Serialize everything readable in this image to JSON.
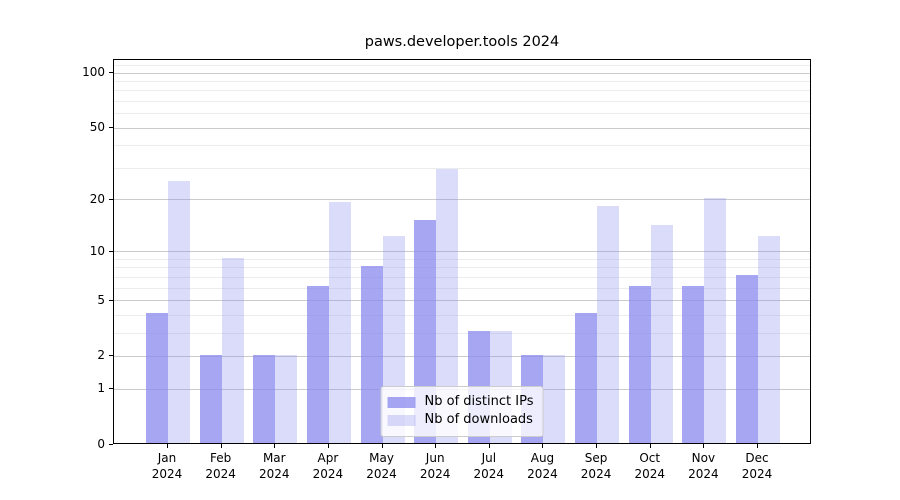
{
  "title": "paws.developer.tools 2024",
  "legend": {
    "position": "lower center",
    "items": [
      {
        "label": "Nb of distinct IPs",
        "color": "rgba(136,136,238,0.75)"
      },
      {
        "label": "Nb of downloads",
        "color": "rgba(136,136,238,0.30)"
      }
    ]
  },
  "axes": {
    "y_tick_labels": [
      "0",
      "1",
      "2",
      "5",
      "10",
      "20",
      "50",
      "100"
    ],
    "x_tick_labels": [
      "Jan 2024",
      "Feb 2024",
      "Mar 2024",
      "Apr 2024",
      "May 2024",
      "Jun 2024",
      "Jul 2024",
      "Aug 2024",
      "Sep 2024",
      "Oct 2024",
      "Nov 2024",
      "Dec 2024"
    ]
  },
  "chart_data": {
    "type": "bar",
    "title": "paws.developer.tools 2024",
    "categories": [
      "Jan 2024",
      "Feb 2024",
      "Mar 2024",
      "Apr 2024",
      "May 2024",
      "Jun 2024",
      "Jul 2024",
      "Aug 2024",
      "Sep 2024",
      "Oct 2024",
      "Nov 2024",
      "Dec 2024"
    ],
    "series": [
      {
        "name": "Nb of distinct IPs",
        "color": "rgba(136,136,238,0.75)",
        "values": [
          4,
          2,
          2,
          6,
          8,
          15,
          3,
          2,
          4,
          6,
          6,
          7
        ]
      },
      {
        "name": "Nb of downloads",
        "color": "rgba(136,136,238,0.30)",
        "values": [
          25,
          9,
          2,
          19,
          12,
          29,
          3,
          2,
          18,
          14,
          20,
          12
        ]
      }
    ],
    "xlabel": "",
    "ylabel": "",
    "yscale": "log10(value+1)",
    "ylim": [
      0,
      118
    ],
    "y_major_ticks": [
      0,
      1,
      2,
      5,
      10,
      20,
      50,
      100
    ],
    "y_minor_gridlines": [
      3,
      4,
      6,
      7,
      8,
      9,
      30,
      40,
      60,
      70,
      80,
      90,
      110
    ],
    "grid": true,
    "legend_position": "lower center",
    "background_color": "#ffffff",
    "gridline_major_color": "#cbcbcb",
    "gridline_minor_color": "#ececec"
  }
}
